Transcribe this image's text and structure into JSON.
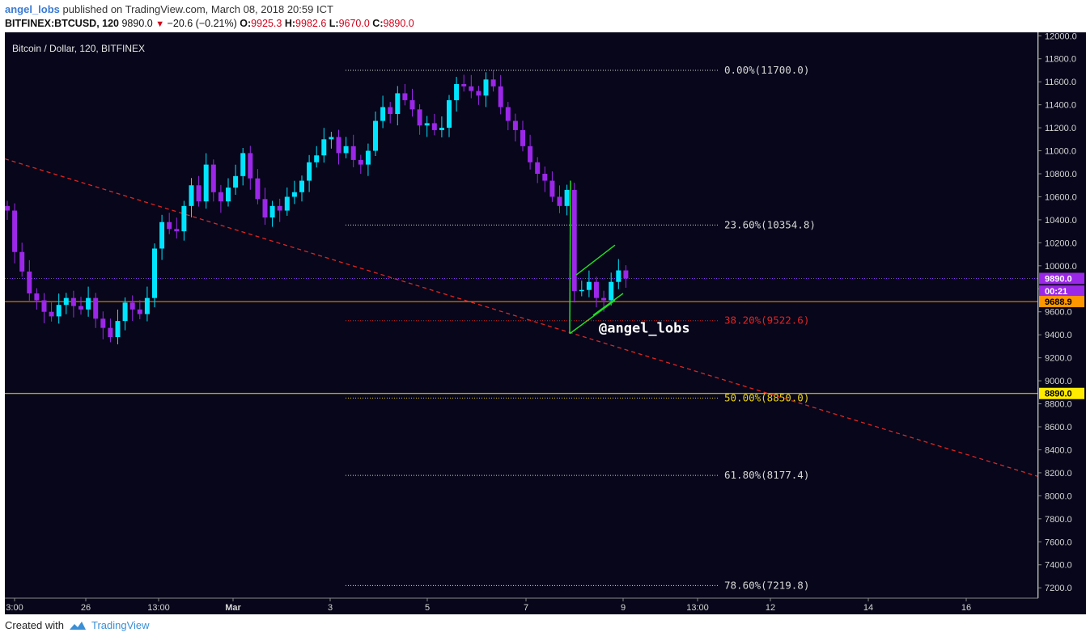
{
  "header": {
    "user": "angel_lobs",
    "published_text": "published on TradingView.com, March 08, 2018 20:59 ICT",
    "symbol": "BITFINEX:BTCUSD, 120",
    "last": "9890.0",
    "change_arrow": "▼",
    "change": "−20.6 (−0.21%)",
    "o_label": "O:",
    "o": "9925.3",
    "h_label": "H:",
    "h": "9982.6",
    "l_label": "L:",
    "l": "9670.0",
    "c_label": "C:",
    "c": "9890.0"
  },
  "footer": {
    "created_with": "Created with",
    "brand": "TradingView"
  },
  "chart_data": {
    "type": "candlestick",
    "title": "Bitcoin / Dollar, 120, BITFINEX",
    "watermark": "@angel_lobs",
    "y_ticks": [
      7200,
      7400,
      7600,
      7800,
      8000,
      8200,
      8400,
      8600,
      8800,
      9000,
      9200,
      9400,
      9600,
      9800,
      10000,
      10200,
      10400,
      10600,
      10800,
      11000,
      11200,
      11400,
      11600,
      11800,
      12000
    ],
    "ylim": [
      7110,
      12030
    ],
    "x_ticks": [
      "3:00",
      "26",
      "13:00",
      "Mar",
      "3",
      "5",
      "7",
      "9",
      "13:00",
      "12",
      "14",
      "16"
    ],
    "fib_levels": [
      {
        "label": "0.00%(11700.0)",
        "value": 11700,
        "color": "#d8d8d8"
      },
      {
        "label": "23.60%(10354.8)",
        "value": 10354.8,
        "color": "#d8d8d8"
      },
      {
        "label": "38.20%(9522.6)",
        "value": 9522.6,
        "color": "#e02424"
      },
      {
        "label": "50.00%(8850.0)",
        "value": 8850,
        "color": "#e8d21a"
      },
      {
        "label": "61.80%(8177.4)",
        "value": 8177.4,
        "color": "#d8d8d8"
      },
      {
        "label": "78.60%(7219.8)",
        "value": 7219.8,
        "color": "#d8d8d8"
      }
    ],
    "price_badges": [
      {
        "label": "9890.0",
        "value": 9890,
        "bg": "#9b27e8",
        "fg": "#ffffff"
      },
      {
        "label": "00:21",
        "value": 9780,
        "bg": "#9b27e8",
        "fg": "#ffffff"
      },
      {
        "label": "9688.9",
        "value": 9688.9,
        "bg": "#ff9800",
        "fg": "#000000"
      },
      {
        "label": "8890.0",
        "value": 8890,
        "bg": "#ffeb00",
        "fg": "#000000"
      }
    ],
    "horizontal_lines": [
      {
        "value": 9890,
        "color": "#8a3df0",
        "style": "dotted"
      },
      {
        "value": 9688.9,
        "color": "#ff9800",
        "style": "solid"
      },
      {
        "value": 8890,
        "color": "#ffeb00",
        "style": "solid"
      }
    ],
    "trendline": {
      "color": "#e02424",
      "style": "dashed",
      "from": [
        0,
        10930
      ],
      "to": [
        1,
        8170
      ]
    },
    "colors": {
      "background": "#07061a",
      "up": "#00e5ff",
      "down": "#9b27e8",
      "channel": "#22dd22"
    },
    "closes": [
      10480,
      10120,
      9950,
      9760,
      9700,
      9600,
      9560,
      9660,
      9720,
      9650,
      9620,
      9720,
      9540,
      9460,
      9380,
      9520,
      9680,
      9620,
      9580,
      9720,
      10150,
      10380,
      10320,
      10300,
      10520,
      10700,
      10560,
      10880,
      10640,
      10560,
      10680,
      10780,
      10980,
      10760,
      10580,
      10420,
      10520,
      10480,
      10600,
      10640,
      10740,
      10900,
      10960,
      11100,
      11120,
      10980,
      11040,
      10920,
      10880,
      11000,
      11260,
      11380,
      11320,
      11500,
      11440,
      11360,
      11220,
      11240,
      11180,
      11200,
      11440,
      11580,
      11560,
      11520,
      11480,
      11620,
      11560,
      11380,
      11260,
      11180,
      11040,
      10900,
      10800,
      10740,
      10600,
      10520,
      10660,
      9780,
      9790,
      9860,
      9720,
      9700,
      9860,
      9960,
      9890
    ]
  }
}
